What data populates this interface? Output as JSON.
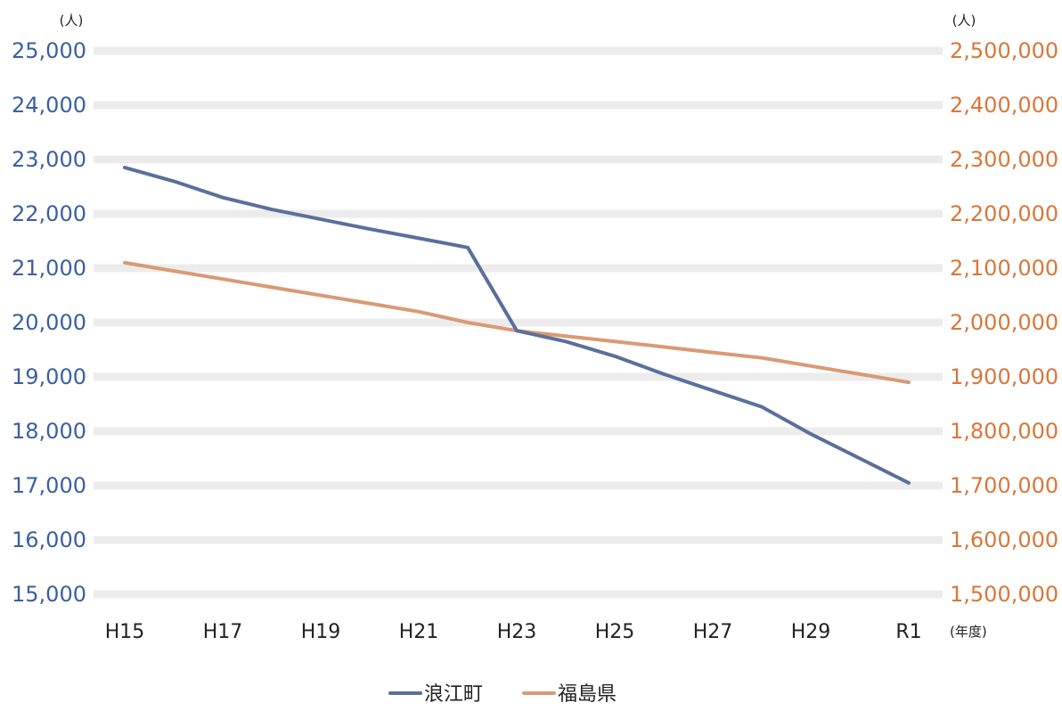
{
  "chart_data": {
    "type": "line",
    "x": [
      "H15",
      "H16",
      "H17",
      "H18",
      "H19",
      "H20",
      "H21",
      "H22",
      "H23",
      "H24",
      "H25",
      "H26",
      "H27",
      "H28",
      "H29",
      "H30",
      "R1"
    ],
    "x_tick_labels": [
      "H15",
      "H17",
      "H19",
      "H21",
      "H23",
      "H25",
      "H27",
      "H29",
      "R1"
    ],
    "x_unit": "(年度)",
    "left_axis": {
      "unit": "(人)",
      "ylim": [
        15000,
        25000
      ],
      "ticks": [
        15000,
        16000,
        17000,
        18000,
        19000,
        20000,
        21000,
        22000,
        23000,
        24000,
        25000
      ],
      "tick_labels": [
        "15,000",
        "16,000",
        "17,000",
        "18,000",
        "19,000",
        "20,000",
        "21,000",
        "22,000",
        "23,000",
        "24,000",
        "25,000"
      ]
    },
    "right_axis": {
      "unit": "(人)",
      "ylim": [
        1500000,
        2500000
      ],
      "ticks": [
        1500000,
        1600000,
        1700000,
        1800000,
        1900000,
        2000000,
        2100000,
        2200000,
        2300000,
        2400000,
        2500000
      ],
      "tick_labels": [
        "1,500,000",
        "1,600,000",
        "1,700,000",
        "1,800,000",
        "1,900,000",
        "2,000,000",
        "2,100,000",
        "2,200,000",
        "2,300,000",
        "2,400,000",
        "2,500,000"
      ]
    },
    "grid": true,
    "legend_position": "bottom-center",
    "series": [
      {
        "name": "浪江町",
        "axis": "left",
        "color": "#5b6f9c",
        "values": [
          22850,
          22600,
          22300,
          22080,
          21900,
          21720,
          21550,
          21380,
          19850,
          19650,
          19380,
          19050,
          18750,
          18450,
          17950,
          17500,
          17050
        ]
      },
      {
        "name": "福島県",
        "axis": "right",
        "color": "#d99a74",
        "values": [
          2110000,
          2095000,
          2080000,
          2065000,
          2050000,
          2035000,
          2020000,
          2000000,
          1985000,
          1975000,
          1965000,
          1955000,
          1945000,
          1935000,
          1920000,
          1905000,
          1890000
        ]
      }
    ]
  }
}
